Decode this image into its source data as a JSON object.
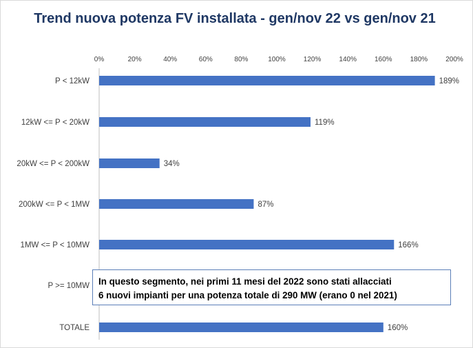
{
  "title": "Trend nuova potenza FV installata - gen/nov 22 vs gen/nov 21",
  "note": {
    "line1": "In questo segmento, nei primi 11 mesi del 2022 sono stati allacciati",
    "line2": "6 nuovi impianti per una potenza totale di 290 MW (erano 0 nel 2021)"
  },
  "chart_data": {
    "type": "bar",
    "orientation": "horizontal",
    "title": "Trend nuova potenza FV installata - gen/nov 22 vs gen/nov 21",
    "xlim": [
      0,
      200
    ],
    "x_axis_position": "top",
    "x_ticks": [
      "0%",
      "20%",
      "40%",
      "60%",
      "80%",
      "100%",
      "120%",
      "140%",
      "160%",
      "180%",
      "200%"
    ],
    "grid": false,
    "categories": [
      "P < 12kW",
      "12kW <= P < 20kW",
      "20kW <= P < 200kW",
      "200kW <= P < 1MW",
      "1MW <= P < 10MW",
      "P >= 10MW",
      "TOTALE"
    ],
    "values": [
      189,
      119,
      34,
      87,
      166,
      null,
      160
    ],
    "data_labels": [
      "189%",
      "119%",
      "34%",
      "87%",
      "166%",
      "",
      "160%"
    ],
    "bar_color": "#4472c4"
  }
}
